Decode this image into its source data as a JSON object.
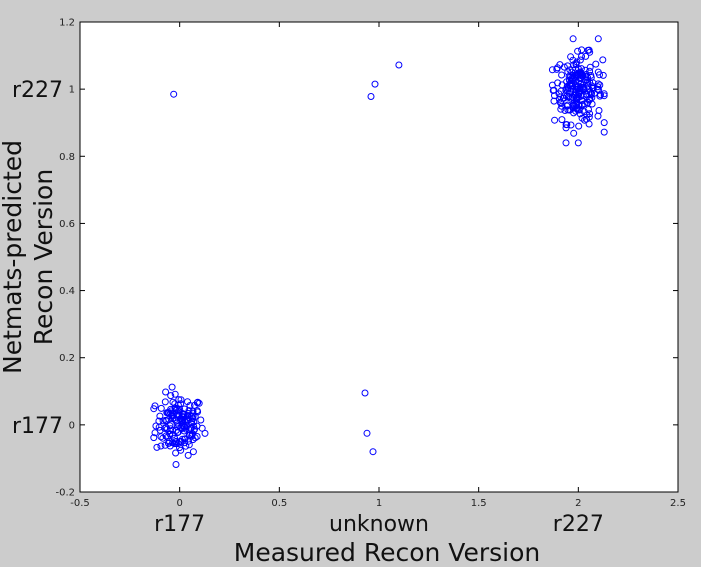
{
  "chart_data": {
    "type": "scatter",
    "title": "",
    "xlabel": "Measured Recon Version",
    "ylabel": [
      "Netmats-predicted",
      "Recon Version"
    ],
    "xlim": [
      -0.5,
      2.5
    ],
    "ylim": [
      -0.2,
      1.2
    ],
    "x_ticks": [
      "-0.5",
      "0",
      "0.5",
      "1",
      "1.5",
      "2",
      "2.5"
    ],
    "y_ticks": [
      "-0.2",
      "0",
      "0.2",
      "0.4",
      "0.6",
      "0.8",
      "1",
      "1.2"
    ],
    "x_category_labels": [
      {
        "value": 0,
        "label": "r177"
      },
      {
        "value": 1,
        "label": "unknown"
      },
      {
        "value": 2,
        "label": "r227"
      }
    ],
    "y_category_labels": [
      {
        "value": 0,
        "label": "r177"
      },
      {
        "value": 1,
        "label": "r227"
      }
    ],
    "marker": "open-circle",
    "marker_color": "#0000ff",
    "grid": false,
    "clusters": [
      {
        "name": "r177",
        "x_center": 0.0,
        "x_spread": 0.06,
        "y_center": 0.0,
        "y_spread": 0.045,
        "y_min": -0.13,
        "y_max": 0.12,
        "count": 160
      },
      {
        "name": "r227",
        "x_center": 2.0,
        "x_spread": 0.06,
        "y_center": 1.0,
        "y_spread": 0.05,
        "y_min": 0.84,
        "y_max": 1.15,
        "count": 220
      }
    ],
    "outliers": [
      {
        "x": -0.03,
        "y": 0.985
      },
      {
        "x": 0.96,
        "y": 0.978
      },
      {
        "x": 0.98,
        "y": 1.015
      },
      {
        "x": 1.1,
        "y": 1.072
      },
      {
        "x": 0.93,
        "y": 0.095
      },
      {
        "x": 0.94,
        "y": -0.025
      },
      {
        "x": 0.97,
        "y": -0.08
      },
      {
        "x": 2.1,
        "y": 1.15
      },
      {
        "x": 2.0,
        "y": 0.84
      }
    ]
  }
}
